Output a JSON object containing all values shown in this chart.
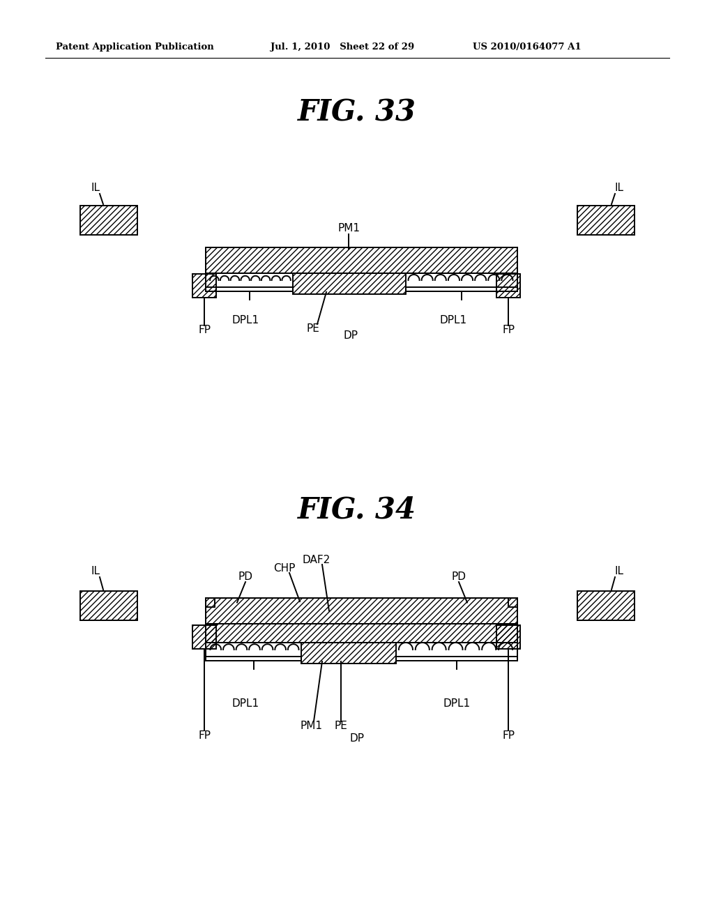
{
  "header_left": "Patent Application Publication",
  "header_mid": "Jul. 1, 2010   Sheet 22 of 29",
  "header_right": "US 2010/0164077 A1",
  "fig33_title": "FIG. 33",
  "fig34_title": "FIG. 34",
  "bg_color": "#ffffff",
  "line_color": "#000000"
}
